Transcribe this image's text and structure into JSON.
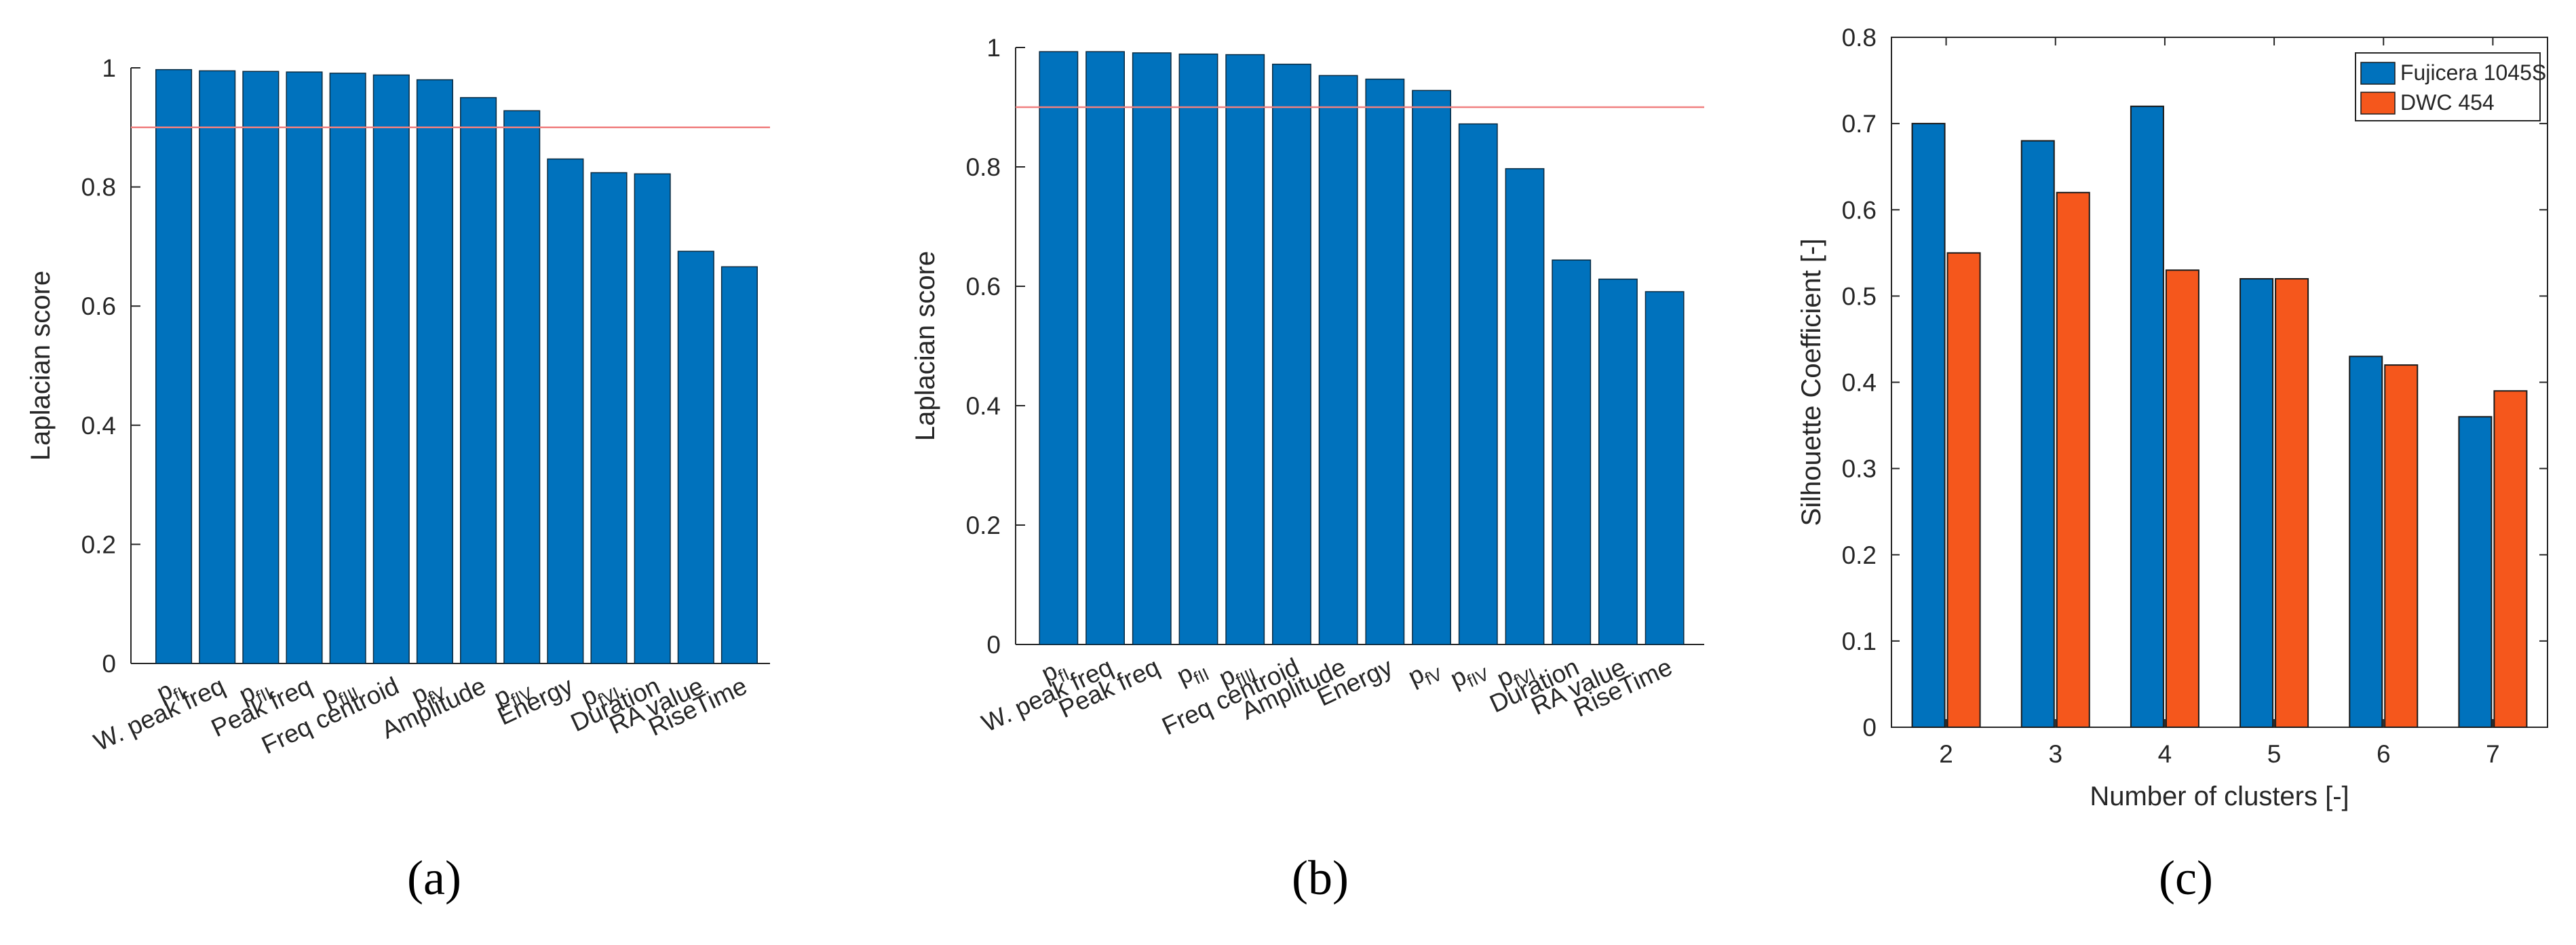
{
  "colors": {
    "bar_blue": "#0072BD",
    "bar_orange": "#F5571C",
    "threshold": "#F08080",
    "axis": "#262626"
  },
  "chart_data": [
    {
      "type": "bar",
      "panel": "(a)",
      "ylabel": "Laplacian score",
      "ylim": [
        0,
        1
      ],
      "yticks": [
        "0",
        "0.2",
        "0.4",
        "0.6",
        "0.8",
        "1"
      ],
      "threshold": 0.9,
      "categories": [
        {
          "label": "p",
          "sub": "fI"
        },
        {
          "label": "W. peak freq"
        },
        {
          "label": "p",
          "sub": "fII"
        },
        {
          "label": "Peak freq"
        },
        {
          "label": "p",
          "sub": "fIII"
        },
        {
          "label": "Freq centroid"
        },
        {
          "label": "p",
          "sub": "fV"
        },
        {
          "label": "Amplitude"
        },
        {
          "label": "p",
          "sub": "fIV"
        },
        {
          "label": "Energy"
        },
        {
          "label": "p",
          "sub": "fVI"
        },
        {
          "label": "Duration"
        },
        {
          "label": "RA value"
        },
        {
          "label": "RiseTime"
        }
      ],
      "values": [
        0.997,
        0.995,
        0.994,
        0.993,
        0.991,
        0.988,
        0.98,
        0.95,
        0.928,
        0.847,
        0.824,
        0.822,
        0.692,
        0.666
      ]
    },
    {
      "type": "bar",
      "panel": "(b)",
      "ylabel": "Laplacian score",
      "ylim": [
        0,
        1
      ],
      "yticks": [
        "0",
        "0.2",
        "0.4",
        "0.6",
        "0.8",
        "1"
      ],
      "threshold": 0.9,
      "categories": [
        {
          "label": "p",
          "sub": "fI"
        },
        {
          "label": "W. peak freq"
        },
        {
          "label": "Peak freq"
        },
        {
          "label": "p",
          "sub": "fII"
        },
        {
          "label": "p",
          "sub": "fIII"
        },
        {
          "label": "Freq centroid"
        },
        {
          "label": "Amplitude"
        },
        {
          "label": "Energy"
        },
        {
          "label": "p",
          "sub": "fV"
        },
        {
          "label": "p",
          "sub": "fIV"
        },
        {
          "label": "p",
          "sub": "fVI"
        },
        {
          "label": "Duration"
        },
        {
          "label": "RA value"
        },
        {
          "label": "RiseTime"
        }
      ],
      "values": [
        0.993,
        0.993,
        0.991,
        0.989,
        0.988,
        0.972,
        0.953,
        0.947,
        0.928,
        0.872,
        0.797,
        0.644,
        0.612,
        0.591
      ]
    },
    {
      "type": "bar",
      "panel": "(c)",
      "xlabel": "Number of clusters [-]",
      "ylabel": "Silhouette Coefficient [-]",
      "ylim": [
        0,
        0.8
      ],
      "yticks": [
        "0",
        "0.1",
        "0.2",
        "0.3",
        "0.4",
        "0.5",
        "0.6",
        "0.7",
        "0.8"
      ],
      "categories": [
        "2",
        "3",
        "4",
        "5",
        "6",
        "7"
      ],
      "series": [
        {
          "name": "Fujicera 1045S",
          "values": [
            0.7,
            0.68,
            0.72,
            0.52,
            0.43,
            0.36
          ]
        },
        {
          "name": "DWC 454",
          "values": [
            0.55,
            0.62,
            0.53,
            0.52,
            0.42,
            0.39
          ]
        }
      ],
      "legend_position": "top-right"
    }
  ]
}
